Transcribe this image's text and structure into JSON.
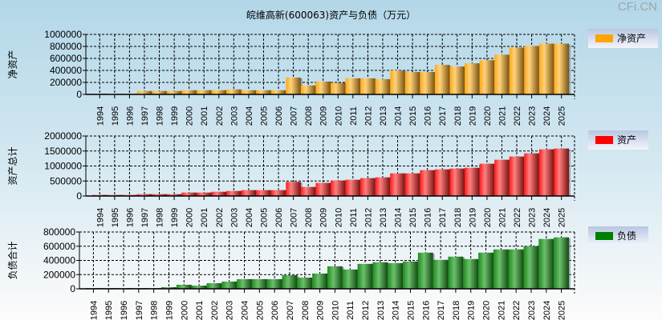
{
  "title": "皖维高新(600063)资产与负债（万元）",
  "watermark": "CFi.CN",
  "chart_data": [
    {
      "type": "bar",
      "ylabel": "净资产",
      "legend": "净资产",
      "legend_placement": "right",
      "color": "#ffa500",
      "ylim": [
        0,
        1000000
      ],
      "yticks": [
        0,
        200000,
        400000,
        600000,
        800000,
        1000000
      ],
      "grid": true,
      "categories": [
        "1994",
        "1995",
        "1996",
        "1997",
        "1998",
        "1999",
        "2000",
        "2001",
        "2002",
        "2003",
        "2004",
        "2005",
        "2006",
        "2007",
        "2008",
        "2009",
        "2010",
        "2011",
        "2012",
        "2013",
        "2014",
        "2015",
        "2016",
        "2017",
        "2018",
        "2019",
        "2020",
        "2021",
        "2022",
        "2023",
        "2024",
        "2025"
      ],
      "values": [
        12000,
        10000,
        10000,
        57000,
        57000,
        57000,
        70000,
        70000,
        70000,
        83000,
        70000,
        70000,
        70000,
        280000,
        150000,
        215000,
        193000,
        268000,
        268000,
        254000,
        400000,
        373000,
        373000,
        491000,
        465000,
        518000,
        570000,
        662000,
        781000,
        807000,
        846000,
        846000
      ]
    },
    {
      "type": "bar",
      "ylabel": "资产总计",
      "legend": "资产",
      "legend_placement": "right",
      "color": "#ff0000",
      "ylim": [
        0,
        2000000
      ],
      "yticks": [
        0,
        500000,
        1000000,
        1500000,
        2000000
      ],
      "grid": true,
      "categories": [
        "1994",
        "1995",
        "1996",
        "1997",
        "1998",
        "1999",
        "2000",
        "2001",
        "2002",
        "2003",
        "2004",
        "2005",
        "2006",
        "2007",
        "2008",
        "2009",
        "2010",
        "2011",
        "2012",
        "2013",
        "2014",
        "2015",
        "2016",
        "2017",
        "2018",
        "2019",
        "2020",
        "2021",
        "2022",
        "2023",
        "2024",
        "2025"
      ],
      "values": [
        36000,
        36000,
        36000,
        62000,
        62000,
        62000,
        115000,
        115000,
        142000,
        169000,
        196000,
        196000,
        196000,
        471000,
        302000,
        436000,
        516000,
        542000,
        596000,
        622000,
        756000,
        756000,
        862000,
        889000,
        916000,
        942000,
        1076000,
        1209000,
        1316000,
        1422000,
        1556000,
        1582000
      ]
    },
    {
      "type": "bar",
      "ylabel": "负债合计",
      "legend": "负债",
      "legend_placement": "right",
      "color": "#008000",
      "ylim": [
        0,
        800000
      ],
      "yticks": [
        0,
        200000,
        400000,
        600000,
        800000
      ],
      "grid": true,
      "categories": [
        "1994",
        "1995",
        "1996",
        "1997",
        "1998",
        "1999",
        "2000",
        "2001",
        "2002",
        "2003",
        "2004",
        "2005",
        "2006",
        "2007",
        "2008",
        "2009",
        "2010",
        "2011",
        "2012",
        "2013",
        "2014",
        "2015",
        "2016",
        "2017",
        "2018",
        "2019",
        "2020",
        "2021",
        "2022",
        "2023",
        "2024",
        "2025"
      ],
      "values": [
        11000,
        11000,
        11000,
        11000,
        11000,
        23000,
        57000,
        45000,
        79000,
        102000,
        136000,
        136000,
        136000,
        192000,
        158000,
        215000,
        317000,
        272000,
        351000,
        374000,
        362000,
        385000,
        509000,
        408000,
        453000,
        419000,
        509000,
        555000,
        555000,
        600000,
        702000,
        725000
      ]
    }
  ]
}
